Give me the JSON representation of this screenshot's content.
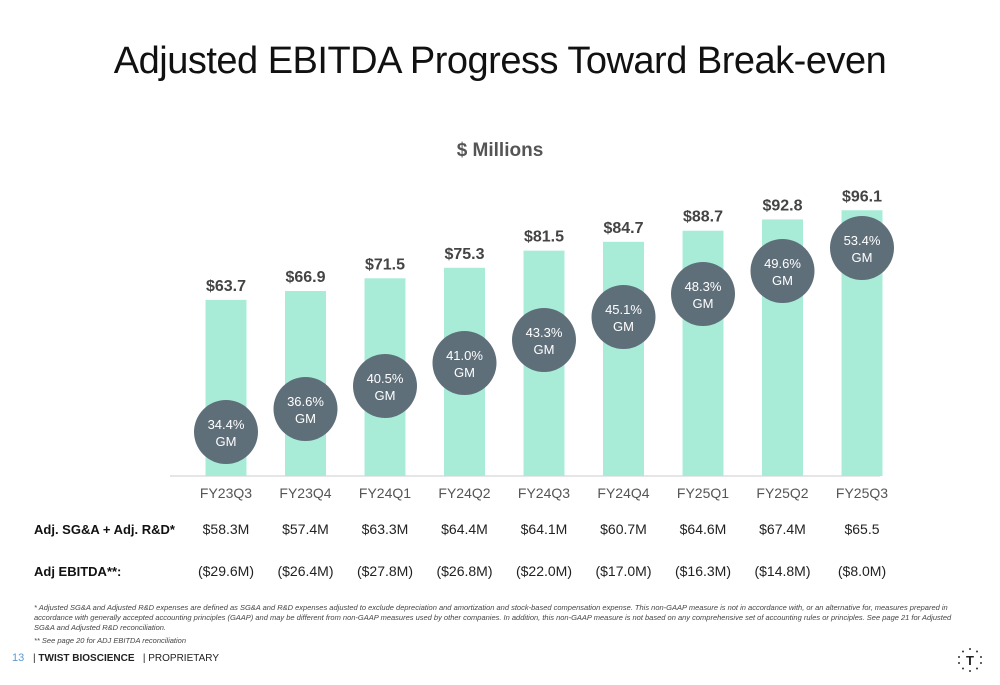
{
  "title": "Adjusted EBITDA Progress Toward Break-even",
  "subtitle": "$ Millions",
  "colors": {
    "bar": "#a8ecd8",
    "bubble": "#5f6f7a",
    "axis": "#cccccc"
  },
  "chart_data": {
    "type": "bar",
    "categories": [
      "FY23Q3",
      "FY23Q4",
      "FY24Q1",
      "FY24Q2",
      "FY24Q3",
      "FY24Q4",
      "FY25Q1",
      "FY25Q2",
      "FY25Q3"
    ],
    "values": [
      63.7,
      66.9,
      71.5,
      75.3,
      81.5,
      84.7,
      88.7,
      92.8,
      96.1
    ],
    "value_labels": [
      "$63.7",
      "$66.9",
      "$71.5",
      "$75.3",
      "$81.5",
      "$84.7",
      "$88.7",
      "$92.8",
      "$96.1"
    ],
    "gm_percent": [
      34.4,
      36.6,
      40.5,
      41.0,
      43.3,
      45.1,
      48.3,
      49.6,
      53.4
    ],
    "gm_labels": [
      "34.4%",
      "36.6%",
      "40.5%",
      "41.0%",
      "43.3%",
      "45.1%",
      "48.3%",
      "49.6%",
      "53.4%"
    ],
    "gm_suffix": "GM",
    "ylim": [
      0,
      100
    ]
  },
  "rows": [
    {
      "label": "Adj. SG&A + Adj. R&D*",
      "values": [
        "$58.3M",
        "$57.4M",
        "$63.3M",
        "$64.4M",
        "$64.1M",
        "$60.7M",
        "$64.6M",
        "$67.4M",
        "$65.5"
      ]
    },
    {
      "label": "Adj EBITDA**:",
      "values": [
        "($29.6M)",
        "($26.4M)",
        "($27.8M)",
        "($26.8M)",
        "($22.0M)",
        "($17.0M)",
        "($16.3M)",
        "($14.8M)",
        "($8.0M)"
      ]
    }
  ],
  "footnotes": [
    "*  Adjusted SG&A and Adjusted R&D expenses are defined as SG&A and R&D expenses adjusted to exclude depreciation and amortization and stock-based compensation expense. This non-GAAP measure is not in accordance with, or an alternative for, measures prepared in accordance with generally accepted accounting principles (GAAP) and may be different from non-GAAP measures used by other companies. In addition, this non-GAAP measure is not based on any comprehensive set of accounting rules or principles. See page 21 for Adjusted SG&A and Adjusted R&D reconciliation.",
    "**  See page 20 for ADJ EBITDA reconciliation"
  ],
  "footer": {
    "page_number": "13",
    "company": "TWIST BIOSCIENCE",
    "classification": "PROPRIETARY",
    "logo_letter": "T"
  }
}
